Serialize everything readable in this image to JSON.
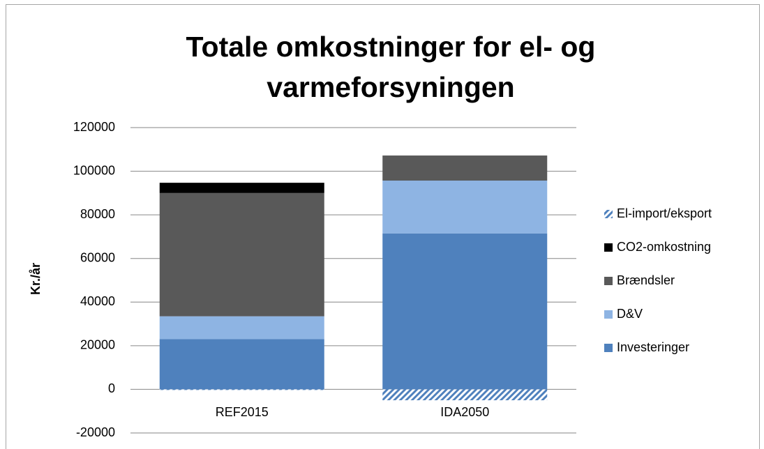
{
  "chart_data": {
    "type": "stacked_bar",
    "title": "Totale omkostninger for el- og varmeforsyningen",
    "ylabel": "Kr./år",
    "categories": [
      "REF2015",
      "IDA2050"
    ],
    "series": [
      {
        "name": "Investeringer",
        "color": "#4f81bd",
        "values": [
          23000,
          71500
        ]
      },
      {
        "name": "D&V",
        "color": "#8eb4e3",
        "values": [
          10500,
          24200
        ]
      },
      {
        "name": "Brændsler",
        "color": "#595959",
        "values": [
          56500,
          11500
        ]
      },
      {
        "name": "CO2-omkostning",
        "color": "#000000",
        "values": [
          4700,
          0
        ]
      },
      {
        "name": "El-import/eksport",
        "color": "#4f81bd",
        "hatch": true,
        "values": [
          -300,
          -5000
        ]
      }
    ],
    "ylim": [
      -20000,
      120000
    ],
    "yticks": [
      -20000,
      0,
      20000,
      40000,
      60000,
      80000,
      100000,
      120000
    ],
    "grid": true,
    "legend": "right"
  }
}
